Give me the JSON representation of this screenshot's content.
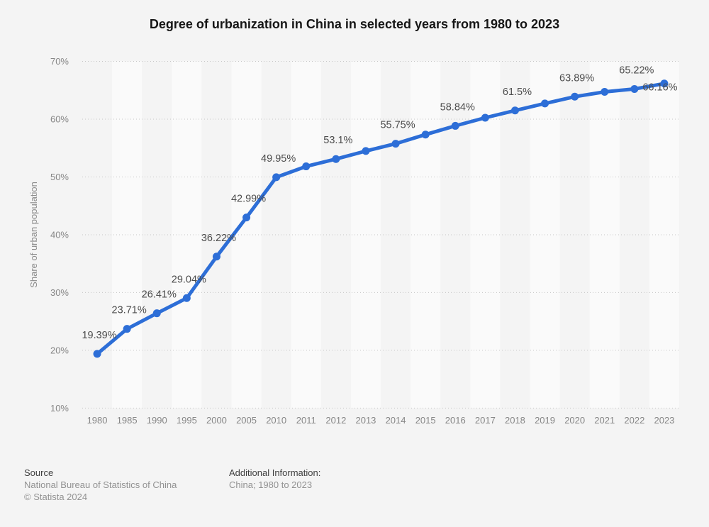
{
  "title": "Degree of urbanization in China in selected years from 1980 to 2023",
  "chart_data": {
    "type": "line",
    "title": "Degree of urbanization in China in selected years from 1980 to 2023",
    "xlabel": "",
    "ylabel": "Share of urban population",
    "ylim": [
      10,
      70
    ],
    "ytick_step": 10,
    "ytick_suffix": "%",
    "grid": "horizontal dotted lines, alternating vertical column bands",
    "legend_position": "none",
    "categories": [
      "1980",
      "1985",
      "1990",
      "1995",
      "2000",
      "2005",
      "2010",
      "2011",
      "2012",
      "2013",
      "2014",
      "2015",
      "2016",
      "2017",
      "2018",
      "2019",
      "2020",
      "2021",
      "2022",
      "2023"
    ],
    "series": [
      {
        "name": "Share of urban population",
        "color": "#2d6ed7",
        "values": [
          19.39,
          23.71,
          26.41,
          29.04,
          36.22,
          42.99,
          49.95,
          51.83,
          53.1,
          54.49,
          55.75,
          57.33,
          58.84,
          60.24,
          61.5,
          62.71,
          63.89,
          64.72,
          65.22,
          66.16
        ],
        "point_labels": [
          "19.39%",
          "23.71%",
          "26.41%",
          "29.04%",
          "36.22%",
          "42.99%",
          "49.95%",
          "",
          "53.1%",
          "",
          "55.75%",
          "",
          "58.84%",
          "",
          "61.5%",
          "",
          "63.89%",
          "",
          "65.22%",
          "66.16%"
        ]
      }
    ]
  },
  "colors": {
    "background": "#f4f4f4",
    "band_light": "#fafafa",
    "gridline": "#c6c6c6",
    "axis_tick_text": "#868686",
    "axis_title_text": "#8a8a8a",
    "point_label_text": "#4c4c4c",
    "accent_line": "#2d6ed7"
  },
  "footer": {
    "source_label": "Source",
    "source_name": "National Bureau of Statistics of China",
    "copyright": "© Statista 2024",
    "additional_label": "Additional Information:",
    "additional_value": "China; 1980 to 2023"
  }
}
